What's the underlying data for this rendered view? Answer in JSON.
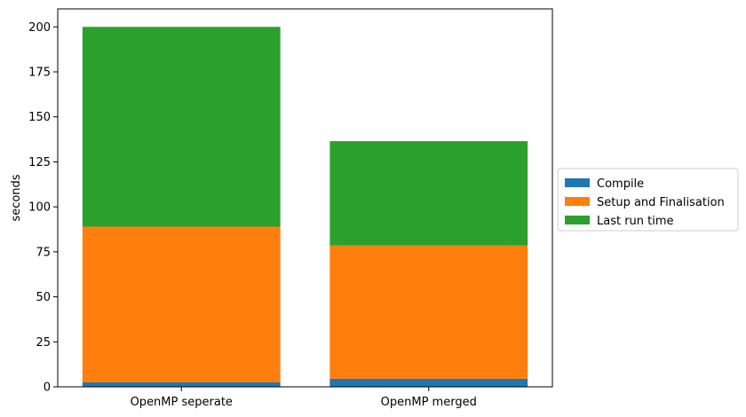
{
  "chart_data": {
    "type": "bar",
    "stacked": true,
    "title": "",
    "xlabel": "",
    "ylabel": "seconds",
    "categories": [
      "OpenMP seperate",
      "OpenMP merged"
    ],
    "series": [
      {
        "name": "Compile",
        "color": "#1f77b4",
        "values": [
          2.5,
          4.5
        ]
      },
      {
        "name": "Setup and Finalisation",
        "color": "#ff7f0e",
        "values": [
          86.5,
          74.0
        ]
      },
      {
        "name": "Last run time",
        "color": "#2ca02c",
        "values": [
          111.0,
          58.0
        ]
      }
    ],
    "ylim": [
      0,
      210
    ],
    "yticks": [
      0,
      25,
      50,
      75,
      100,
      125,
      150,
      175,
      200
    ],
    "grid": false,
    "legend_position": "outside-right"
  }
}
